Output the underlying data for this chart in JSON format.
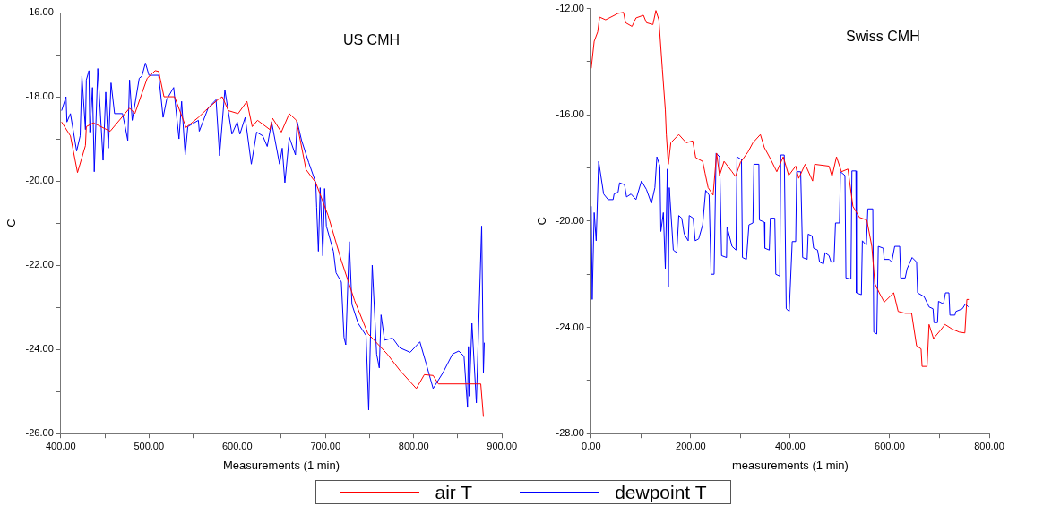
{
  "chart_data": [
    {
      "type": "line",
      "annotations": [
        "US CMH"
      ],
      "xlabel": "Measurements (1 min)",
      "ylabel": "C",
      "legend": "bottom",
      "xlim": [
        400,
        900
      ],
      "xticks": [
        {
          "value": 400,
          "label": "400.00"
        },
        {
          "value": 450,
          "label": null
        },
        {
          "value": 500,
          "label": "500.00"
        },
        {
          "value": 550,
          "label": null
        },
        {
          "value": 600,
          "label": "600.00"
        },
        {
          "value": 650,
          "label": null
        },
        {
          "value": 700,
          "label": "700.00"
        },
        {
          "value": 750,
          "label": null
        },
        {
          "value": 800,
          "label": "800.00"
        },
        {
          "value": 850,
          "label": null
        },
        {
          "value": 900,
          "label": "900.00"
        }
      ],
      "ylim": [
        -26,
        -16
      ],
      "yticks": [
        {
          "value": -26,
          "label": "-26.00"
        },
        {
          "value": -25,
          "label": null
        },
        {
          "value": -24,
          "label": "-24.00"
        },
        {
          "value": -23,
          "label": null
        },
        {
          "value": -22,
          "label": "-22.00"
        },
        {
          "value": -21,
          "label": null
        },
        {
          "value": -20,
          "label": "-20.00"
        },
        {
          "value": -19,
          "label": null
        },
        {
          "value": -18,
          "label": "-18.00"
        },
        {
          "value": -17,
          "label": null
        },
        {
          "value": -16,
          "label": "-16.00"
        }
      ],
      "series": [
        {
          "name": "air T",
          "color": "#ff0000",
          "x": [
            401,
            411,
            419,
            428,
            429,
            437,
            456,
            478,
            484,
            498,
            507,
            511,
            517,
            529,
            542,
            556,
            564,
            578,
            583,
            590,
            601,
            611,
            617,
            623,
            637,
            640,
            650,
            659,
            667,
            678,
            689,
            703,
            718,
            733,
            748,
            770,
            784,
            803,
            812,
            822,
            828,
            862,
            876,
            879
          ],
          "values": [
            -18.6,
            -18.93,
            -19.8,
            -19.16,
            -18.71,
            -18.62,
            -18.82,
            -18.27,
            -18.4,
            -17.56,
            -17.38,
            -17.4,
            -18.0,
            -18.0,
            -18.73,
            -18.49,
            -18.33,
            -18.07,
            -18.0,
            -18.33,
            -18.4,
            -18.11,
            -18.71,
            -18.56,
            -18.78,
            -18.51,
            -18.84,
            -18.4,
            -18.56,
            -19.73,
            -20.04,
            -20.82,
            -21.89,
            -22.84,
            -23.62,
            -24.11,
            -24.49,
            -24.93,
            -24.6,
            -24.62,
            -24.82,
            -24.82,
            -24.82,
            -25.6
          ]
        },
        {
          "name": "dewpoint T",
          "color": "#0000ff",
          "x": [
            401,
            406,
            407,
            411,
            418,
            422,
            424,
            428,
            429,
            432,
            433,
            436,
            438,
            442,
            448,
            451,
            454,
            457,
            461,
            470,
            473,
            476,
            478,
            481,
            489,
            492,
            496,
            500,
            511,
            516,
            520,
            528,
            534,
            537,
            541,
            544,
            556,
            557,
            567,
            576,
            580,
            586,
            594,
            600,
            603,
            609,
            616,
            622,
            629,
            634,
            639,
            648,
            651,
            654,
            659,
            666,
            668,
            673,
            681,
            689,
            690,
            692,
            694,
            697,
            699,
            701,
            709,
            712,
            718,
            721,
            723,
            727,
            730,
            737,
            746,
            749,
            753,
            758,
            761,
            763,
            767,
            776,
            784,
            796,
            807,
            814,
            822,
            833,
            844,
            851,
            857,
            861,
            862,
            863,
            866,
            871,
            877,
            879,
            880
          ],
          "values": [
            -18.33,
            -18.0,
            -18.6,
            -18.4,
            -19.29,
            -18.93,
            -17.51,
            -18.78,
            -17.6,
            -17.38,
            -18.84,
            -17.78,
            -19.78,
            -17.33,
            -19.51,
            -17.89,
            -19.22,
            -17.67,
            -18.4,
            -18.4,
            -18.71,
            -19.04,
            -17.6,
            -18.56,
            -17.56,
            -17.51,
            -17.2,
            -17.49,
            -17.49,
            -18.49,
            -18.07,
            -17.78,
            -19.0,
            -18.11,
            -19.38,
            -18.71,
            -18.56,
            -18.82,
            -18.27,
            -18.07,
            -19.4,
            -17.84,
            -18.89,
            -18.6,
            -18.89,
            -18.49,
            -19.6,
            -18.84,
            -18.93,
            -19.18,
            -18.6,
            -19.6,
            -19.22,
            -20.04,
            -18.96,
            -19.38,
            -18.6,
            -19.04,
            -19.56,
            -20.04,
            -20.62,
            -21.67,
            -20.16,
            -21.78,
            -20.18,
            -21.07,
            -21.67,
            -22.18,
            -22.4,
            -23.71,
            -23.89,
            -21.44,
            -22.93,
            -23.38,
            -23.67,
            -25.44,
            -22.0,
            -24.11,
            -24.44,
            -23.18,
            -23.78,
            -23.73,
            -23.96,
            -24.07,
            -23.82,
            -24.33,
            -24.93,
            -24.56,
            -24.11,
            -24.04,
            -24.16,
            -25.38,
            -23.93,
            -25.11,
            -23.38,
            -25.27,
            -21.07,
            -24.56,
            -23.84
          ]
        }
      ]
    },
    {
      "type": "line",
      "annotations": [
        "Swiss CMH"
      ],
      "xlabel": "measurements (1 min)",
      "ylabel": "C",
      "legend": "bottom",
      "xlim": [
        0,
        800
      ],
      "xticks": [
        {
          "value": 0,
          "label": "0.00"
        },
        {
          "value": 100,
          "label": null
        },
        {
          "value": 200,
          "label": "200.00"
        },
        {
          "value": 300,
          "label": null
        },
        {
          "value": 400,
          "label": "400.00"
        },
        {
          "value": 500,
          "label": null
        },
        {
          "value": 600,
          "label": "600.00"
        },
        {
          "value": 700,
          "label": null
        },
        {
          "value": 800,
          "label": "800.00"
        }
      ],
      "ylim": [
        -28,
        -12
      ],
      "yticks": [
        {
          "value": -28,
          "label": "-28.00"
        },
        {
          "value": -26,
          "label": null
        },
        {
          "value": -24,
          "label": "-24.00"
        },
        {
          "value": -22,
          "label": null
        },
        {
          "value": -20,
          "label": "-20.00"
        },
        {
          "value": -18,
          "label": null
        },
        {
          "value": -16,
          "label": "-16.00"
        },
        {
          "value": -14,
          "label": null
        },
        {
          "value": -12,
          "label": "-12.00"
        }
      ],
      "series": [
        {
          "name": "air T",
          "color": "#ff0000",
          "x": [
            0,
            6,
            13,
            17,
            29,
            54,
            65,
            69,
            82,
            90,
            105,
            111,
            124,
            130,
            136,
            143,
            149,
            151,
            155,
            160,
            176,
            191,
            204,
            210,
            224,
            229,
            235,
            245,
            252,
            258,
            267,
            283,
            290,
            300,
            315,
            325,
            340,
            348,
            359,
            373,
            386,
            397,
            411,
            417,
            430,
            445,
            449,
            478,
            484,
            493,
            503,
            516,
            526,
            539,
            554,
            564,
            570,
            579,
            589,
            608,
            617,
            631,
            644,
            654,
            663,
            665,
            675,
            679,
            688,
            702,
            711,
            726,
            740,
            751,
            755,
            759
          ],
          "values": [
            -14.25,
            -13.23,
            -12.88,
            -12.32,
            -12.42,
            -12.18,
            -12.14,
            -12.53,
            -12.67,
            -12.35,
            -12.25,
            -12.53,
            -12.6,
            -12.07,
            -12.42,
            -14.28,
            -15.82,
            -16.74,
            -17.86,
            -17.05,
            -16.74,
            -17.05,
            -16.98,
            -17.61,
            -17.75,
            -18.21,
            -18.74,
            -19.02,
            -17.44,
            -18.28,
            -17.75,
            -18.14,
            -18.32,
            -17.79,
            -17.4,
            -17.05,
            -16.74,
            -17.23,
            -17.61,
            -18.14,
            -17.58,
            -18.28,
            -17.93,
            -18.39,
            -17.86,
            -18.49,
            -17.86,
            -17.93,
            -18.32,
            -17.58,
            -18.14,
            -18.04,
            -19.44,
            -19.86,
            -19.96,
            -20.95,
            -22.35,
            -22.7,
            -23.05,
            -22.7,
            -23.4,
            -23.47,
            -23.47,
            -24.7,
            -24.81,
            -25.47,
            -25.47,
            -23.89,
            -24.42,
            -24.11,
            -23.89,
            -24.07,
            -24.18,
            -24.21,
            -22.95,
            -22.95
          ]
        },
        {
          "name": "dewpoint T",
          "color": "#0000ff",
          "x": [
            0,
            2,
            6,
            10,
            15,
            25,
            34,
            44,
            46,
            54,
            57,
            67,
            71,
            80,
            90,
            101,
            111,
            121,
            128,
            132,
            138,
            140,
            145,
            149,
            153,
            155,
            157,
            165,
            172,
            176,
            182,
            187,
            195,
            197,
            205,
            209,
            216,
            224,
            230,
            237,
            241,
            247,
            251,
            258,
            262,
            272,
            273,
            283,
            291,
            293,
            302,
            304,
            312,
            317,
            325,
            327,
            337,
            338,
            348,
            349,
            358,
            360,
            369,
            371,
            379,
            381,
            388,
            392,
            398,
            404,
            411,
            413,
            421,
            425,
            434,
            436,
            444,
            447,
            455,
            459,
            467,
            470,
            478,
            482,
            488,
            491,
            499,
            501,
            510,
            512,
            522,
            524,
            532,
            533,
            543,
            545,
            553,
            556,
            566,
            568,
            574,
            577,
            587,
            589,
            599,
            604,
            610,
            620,
            622,
            631,
            635,
            645,
            654,
            656,
            669,
            679,
            687,
            689,
            696,
            698,
            708,
            712,
            719,
            721,
            731,
            733,
            746,
            752,
            758
          ],
          "values": [
            -19.44,
            -22.95,
            -19.68,
            -20.74,
            -17.75,
            -18.98,
            -19.19,
            -19.19,
            -18.98,
            -18.91,
            -18.56,
            -18.63,
            -19.09,
            -18.98,
            -19.19,
            -18.49,
            -18.81,
            -19.33,
            -18.74,
            -17.58,
            -17.93,
            -20.39,
            -19.68,
            -21.79,
            -18.04,
            -22.49,
            -18.74,
            -21.09,
            -21.19,
            -19.79,
            -19.89,
            -20.49,
            -20.74,
            -19.79,
            -19.89,
            -20.74,
            -20.67,
            -20.14,
            -18.84,
            -19.02,
            -22.0,
            -22.0,
            -17.44,
            -17.58,
            -21.3,
            -21.37,
            -20.21,
            -20.95,
            -21.09,
            -17.58,
            -17.68,
            -21.37,
            -21.44,
            -20.14,
            -20.07,
            -17.86,
            -17.86,
            -19.96,
            -20.04,
            -21.02,
            -21.09,
            -19.89,
            -19.89,
            -22.0,
            -22.07,
            -17.51,
            -17.51,
            -23.3,
            -23.4,
            -20.77,
            -20.77,
            -18.14,
            -18.14,
            -21.37,
            -21.44,
            -20.49,
            -20.56,
            -21.02,
            -21.09,
            -21.54,
            -21.61,
            -21.19,
            -21.3,
            -21.54,
            -21.54,
            -20.07,
            -20.07,
            -18.14,
            -18.28,
            -22.14,
            -22.18,
            -18.11,
            -18.11,
            -22.7,
            -22.77,
            -20.74,
            -20.91,
            -19.54,
            -19.54,
            -24.18,
            -24.25,
            -20.95,
            -21.02,
            -21.44,
            -21.44,
            -21.54,
            -20.95,
            -20.95,
            -22.14,
            -22.14,
            -21.79,
            -21.37,
            -21.54,
            -22.7,
            -22.84,
            -23.23,
            -23.3,
            -23.82,
            -23.82,
            -23.02,
            -23.12,
            -22.7,
            -22.7,
            -23.54,
            -23.54,
            -23.4,
            -23.3,
            -23.12,
            -23.23
          ]
        }
      ]
    }
  ]
}
